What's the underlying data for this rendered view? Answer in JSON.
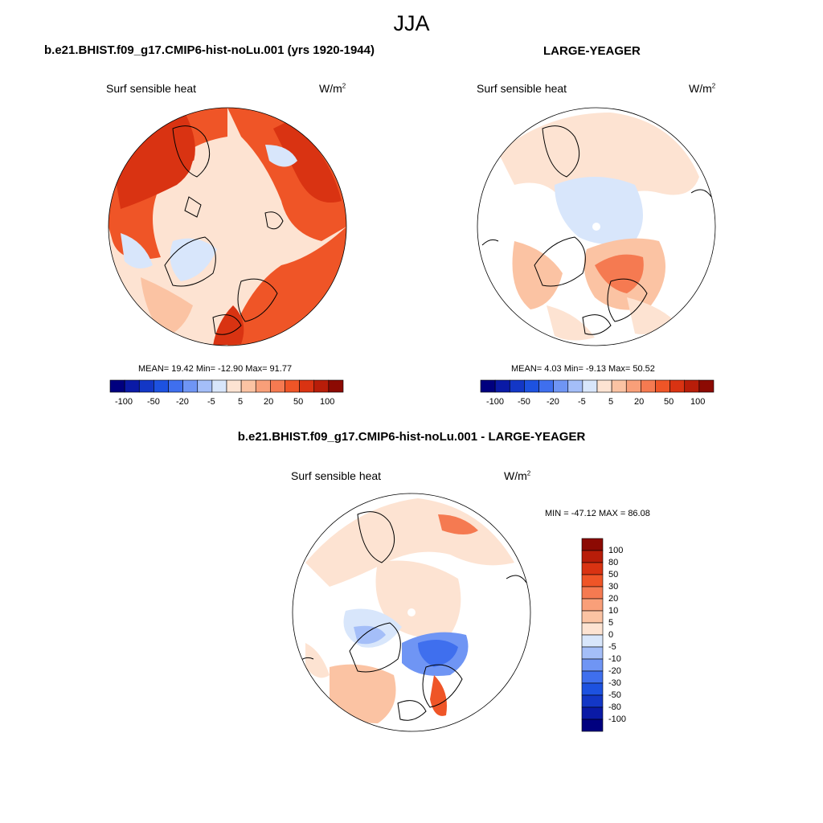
{
  "page_title": "JJA",
  "colors": {
    "palette": [
      "#00007f",
      "#0a1aa6",
      "#1337c6",
      "#1d52e0",
      "#3f6fee",
      "#6f95f4",
      "#a4bef8",
      "#d8e6fb",
      "#fde3d2",
      "#fbc3a3",
      "#f99f79",
      "#f57a51",
      "#ef5527",
      "#d93312",
      "#b81d09",
      "#8c0a03"
    ],
    "ocean_fill": "#fde3d2",
    "coast": "#000000"
  },
  "panels": [
    {
      "id": "left",
      "title": "b.e21.BHIST.f09_g17.CMIP6-hist-noLu.001 (yrs 1920-1944)",
      "variable": "Surf sensible heat",
      "units_base": "W/m",
      "units_exp": "2",
      "stats": "MEAN=  19.42  Min= -12.90  Max=  91.77"
    },
    {
      "id": "right",
      "title": "LARGE-YEAGER",
      "variable": "Surf sensible heat",
      "units_base": "W/m",
      "units_exp": "2",
      "stats": "MEAN=   4.03  Min=  -9.13  Max=  50.52"
    },
    {
      "id": "diff",
      "title": "b.e21.BHIST.f09_g17.CMIP6-hist-noLu.001 - LARGE-YEAGER",
      "variable": "Surf sensible heat",
      "units_base": "W/m",
      "units_exp": "2",
      "stats": "MIN = -47.12 MAX =  86.08"
    }
  ],
  "colorbar_horizontal_ticks": [
    "-100",
    "-50",
    "-20",
    "-5",
    "5",
    "20",
    "50",
    "100"
  ],
  "colorbar_vertical_ticks": [
    "100",
    "80",
    "50",
    "30",
    "20",
    "10",
    "5",
    "0",
    "-5",
    "-10",
    "-20",
    "-30",
    "-50",
    "-80",
    "-100"
  ],
  "chart_data": [
    {
      "type": "heatmap",
      "title": "b.e21.BHIST.f09_g17.CMIP6-hist-noLu.001 (yrs 1920-1944)",
      "variable": "Surf sensible heat",
      "units": "W/m2",
      "season": "JJA",
      "projection": "north polar stereographic",
      "mean": 19.42,
      "min": -12.9,
      "max": 91.77,
      "contour_levels": [
        -100,
        -80,
        -50,
        -30,
        -20,
        -10,
        -5,
        0,
        5,
        10,
        20,
        30,
        50,
        80,
        100
      ]
    },
    {
      "type": "heatmap",
      "title": "LARGE-YEAGER",
      "variable": "Surf sensible heat",
      "units": "W/m2",
      "season": "JJA",
      "projection": "north polar stereographic",
      "mean": 4.03,
      "min": -9.13,
      "max": 50.52,
      "contour_levels": [
        -100,
        -80,
        -50,
        -30,
        -20,
        -10,
        -5,
        0,
        5,
        10,
        20,
        30,
        50,
        80,
        100
      ]
    },
    {
      "type": "heatmap",
      "title": "b.e21.BHIST.f09_g17.CMIP6-hist-noLu.001 - LARGE-YEAGER",
      "variable": "Surf sensible heat",
      "units": "W/m2",
      "season": "JJA",
      "projection": "north polar stereographic",
      "min": -47.12,
      "max": 86.08,
      "contour_levels": [
        -100,
        -80,
        -50,
        -30,
        -20,
        -10,
        -5,
        0,
        5,
        10,
        20,
        30,
        50,
        80,
        100
      ]
    }
  ]
}
